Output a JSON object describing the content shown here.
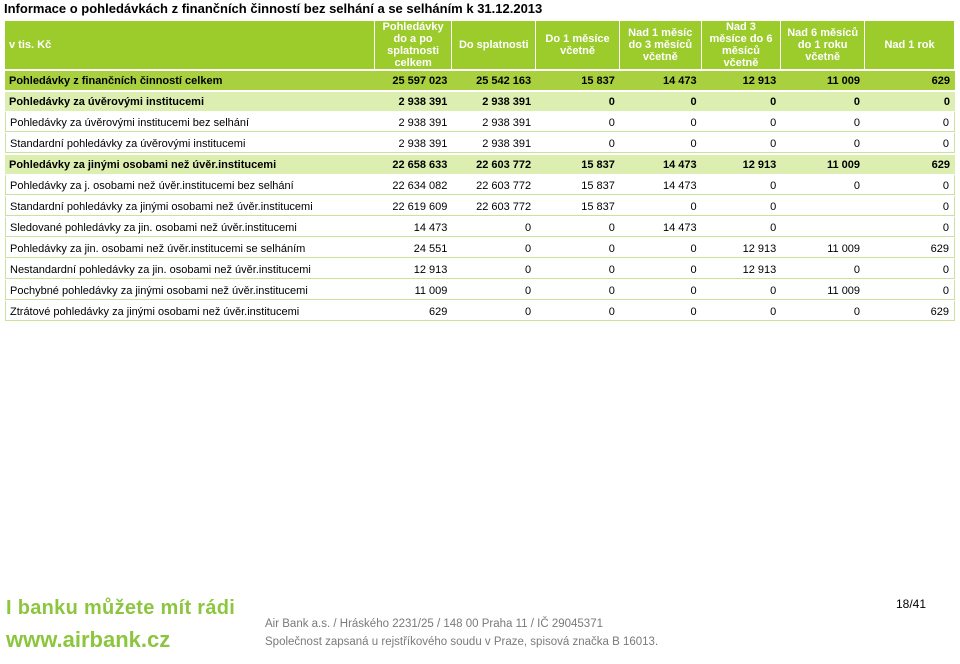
{
  "title": "Informace o pohledávkách z finančních činností bez selhání a se selháním k 31.12.2013",
  "header": {
    "unit": "v tis. Kč",
    "col1": "Pohledávky do a po splatnosti celkem",
    "col2": "Do splatnosti",
    "col3": "Do 1 měsíce včetně",
    "col4": "Nad 1 měsíc do 3 měsíců včetně",
    "col5": "Nad 3 měsíce do 6 měsíců včetně",
    "col6": "Nad 6 měsíců do 1 roku včetně",
    "col7": "Nad 1 rok"
  },
  "rows": [
    {
      "label": "Pohledávky z finančních činností celkem",
      "v": [
        "25 597 023",
        "25 542 163",
        "15 837",
        "14 473",
        "12 913",
        "11 009",
        "629"
      ]
    },
    {
      "label": "Pohledávky za úvěrovými institucemi",
      "v": [
        "2 938 391",
        "2 938 391",
        "0",
        "0",
        "0",
        "0",
        "0"
      ]
    },
    {
      "label": "Pohledávky za úvěrovými institucemi bez selhání",
      "v": [
        "2 938 391",
        "2 938 391",
        "0",
        "0",
        "0",
        "0",
        "0"
      ]
    },
    {
      "label": "Standardní pohledávky za úvěrovými institucemi",
      "v": [
        "2 938 391",
        "2 938 391",
        "0",
        "0",
        "0",
        "0",
        "0"
      ]
    },
    {
      "label": "Pohledávky za jinými osobami než úvěr.institucemi",
      "v": [
        "22 658 633",
        "22 603 772",
        "15 837",
        "14 473",
        "12 913",
        "11 009",
        "629"
      ]
    },
    {
      "label": "Pohledávky za j. osobami než úvěr.institucemi bez selhání",
      "v": [
        "22 634 082",
        "22 603 772",
        "15 837",
        "14 473",
        "0",
        "0",
        "0"
      ]
    },
    {
      "label": "Standardní pohledávky za jinými osobami než úvěr.institucemi",
      "v": [
        "22 619 609",
        "22 603 772",
        "15 837",
        "0",
        "0",
        "",
        "0"
      ]
    },
    {
      "label": "Sledované pohledávky za jin. osobami než úvěr.institucemi",
      "v": [
        "14 473",
        "0",
        "0",
        "14 473",
        "0",
        "",
        "0"
      ]
    },
    {
      "label": "Pohledávky za jin. osobami než úvěr.institucemi se selháním",
      "v": [
        "24 551",
        "0",
        "0",
        "0",
        "12 913",
        "11 009",
        "629"
      ]
    },
    {
      "label": "Nestandardní pohledávky za jin. osobami než úvěr.institucemi",
      "v": [
        "12 913",
        "0",
        "0",
        "0",
        "12 913",
        "0",
        "0"
      ]
    },
    {
      "label": "Pochybné pohledávky za jinými osobami než úvěr.institucemi",
      "v": [
        "11 009",
        "0",
        "0",
        "0",
        "0",
        "11 009",
        "0"
      ]
    },
    {
      "label": "Ztrátové pohledávky za jinými osobami než úvěr.institucemi",
      "v": [
        "629",
        "0",
        "0",
        "0",
        "0",
        "0",
        "629"
      ]
    }
  ],
  "footer": {
    "slogan": "I banku můžete mít rádi",
    "url": "www.airbank.cz",
    "line1": "Air Bank a.s. / Hráského 2231/25 / 148 00 Praha 11 / IČ 29045371",
    "line2": "Společnost zapsaná u rejstříkového soudu v Praze, spisová značka B 16013.",
    "page": "18/41"
  }
}
